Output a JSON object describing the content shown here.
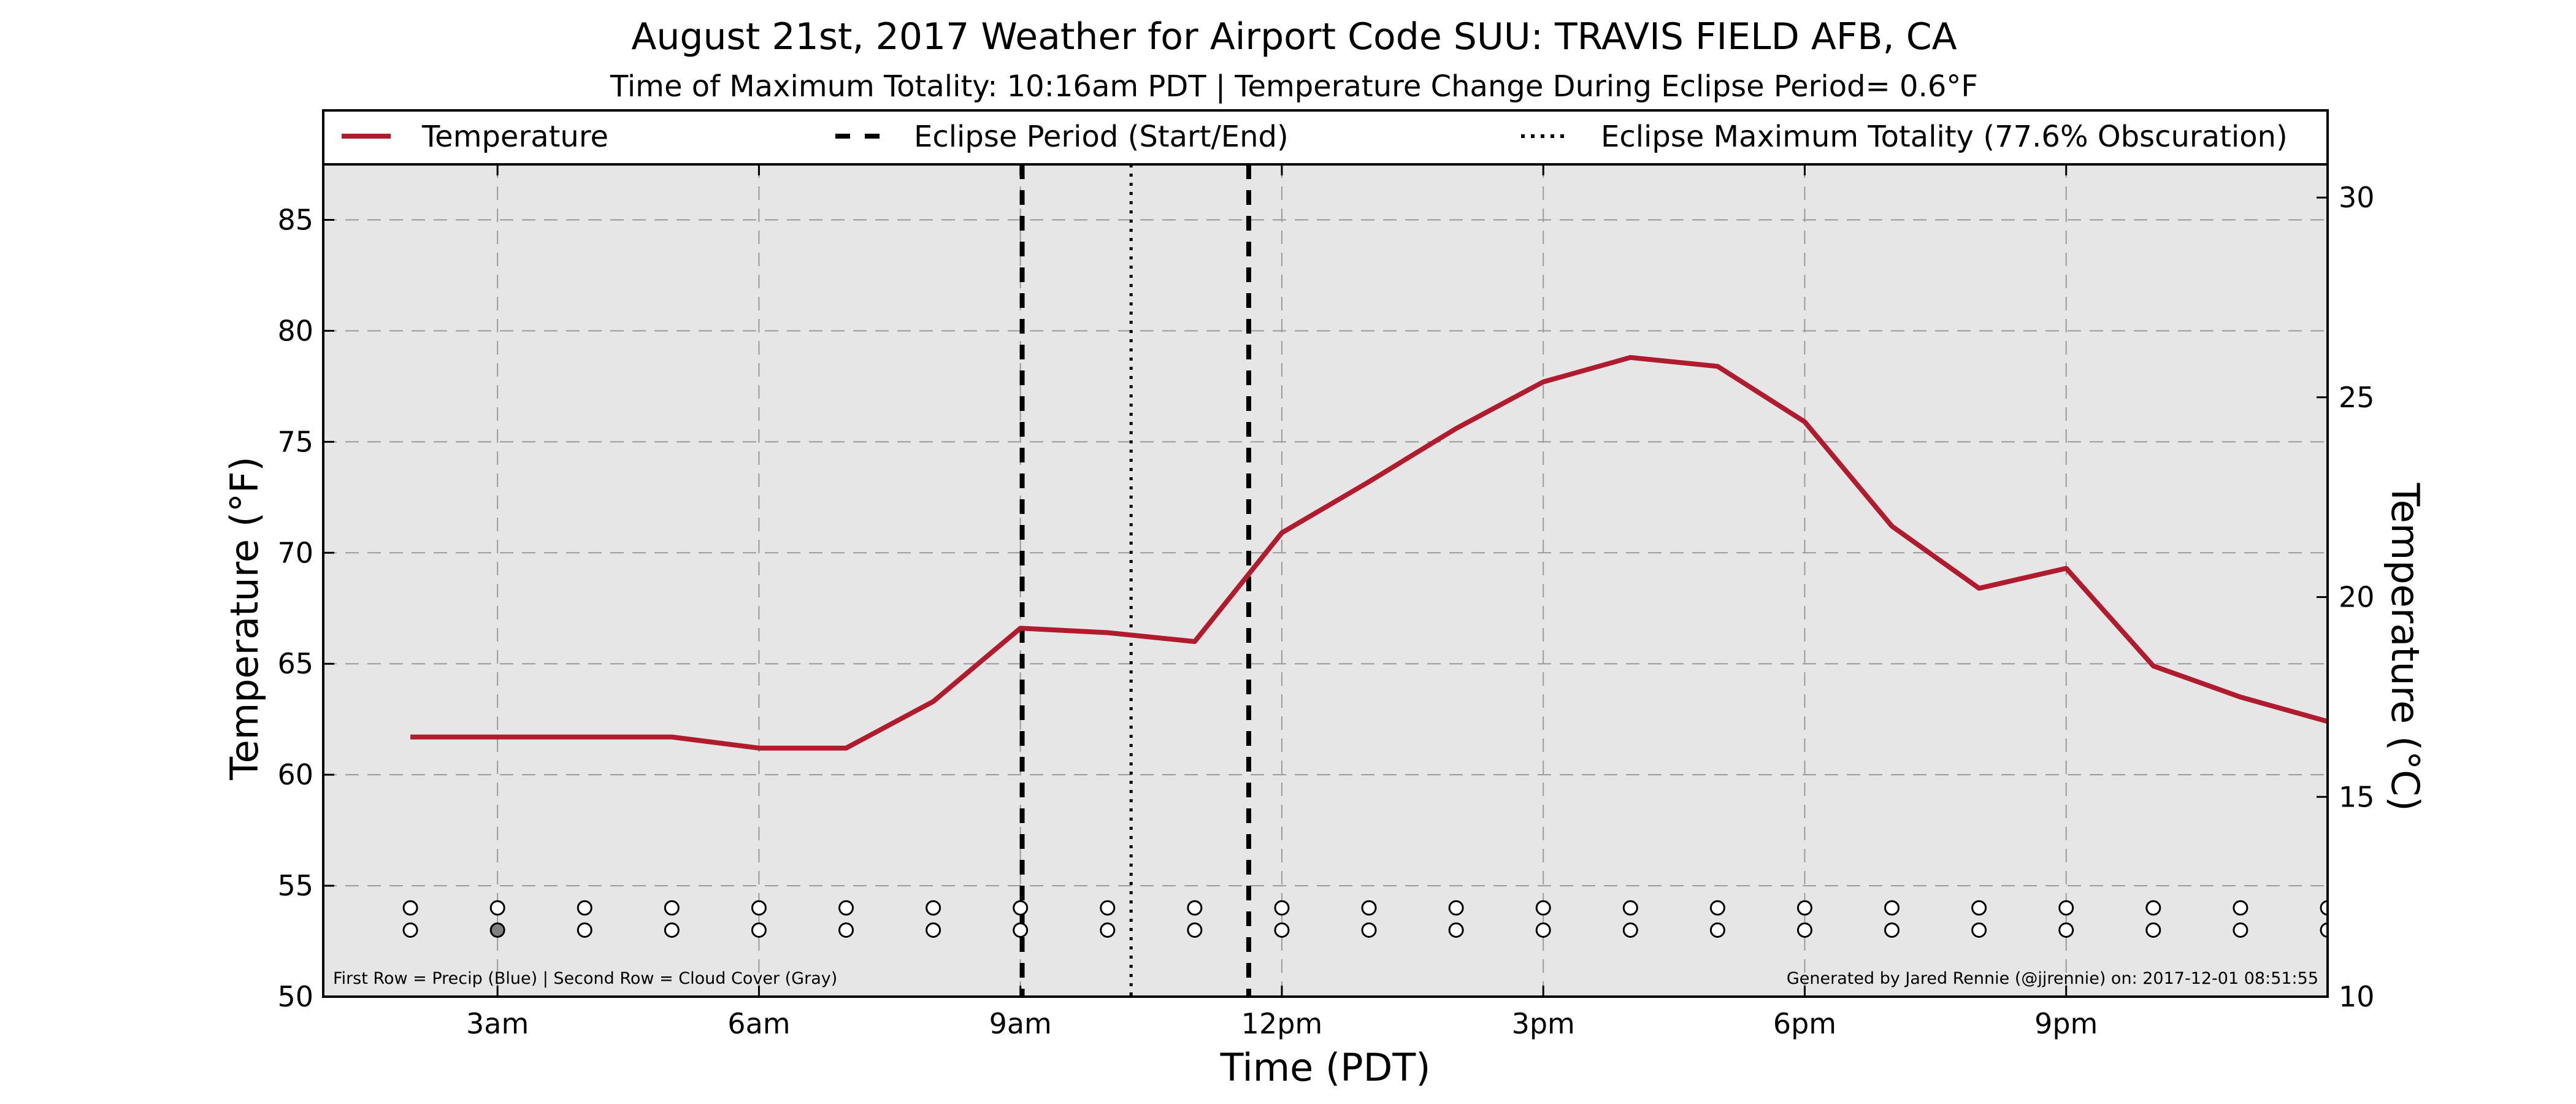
{
  "chart_data": {
    "type": "line",
    "title": "August 21st, 2017 Weather for Airport Code SUU: TRAVIS FIELD AFB, CA",
    "subtitle": "Time of Maximum Totality: 10:16am PDT | Temperature Change During Eclipse Period= 0.6°F",
    "xlabel": "Time (PDT)",
    "ylabel": "Temperature (°F)",
    "ylabel_right": "Temperature (°C)",
    "xlim": [
      1.0,
      24.0
    ],
    "ylim": [
      50,
      87.5
    ],
    "ylim_right": [
      10,
      30.83
    ],
    "x_ticks": [
      {
        "x": 3,
        "label": "3am"
      },
      {
        "x": 6,
        "label": "6am"
      },
      {
        "x": 9,
        "label": "9am"
      },
      {
        "x": 12,
        "label": "12pm"
      },
      {
        "x": 15,
        "label": "3pm"
      },
      {
        "x": 18,
        "label": "6pm"
      },
      {
        "x": 21,
        "label": "9pm"
      }
    ],
    "y_ticks": [
      50,
      55,
      60,
      65,
      70,
      75,
      80,
      85
    ],
    "y_ticks_right": [
      10,
      15,
      20,
      25,
      30
    ],
    "grid": true,
    "legend_position": "top",
    "series": [
      {
        "name": "Temperature",
        "color": "#b01c2e",
        "x": [
          2,
          3,
          4,
          5,
          6,
          7,
          8,
          9,
          10,
          11,
          12,
          13,
          14,
          15,
          16,
          17,
          18,
          19,
          20,
          21,
          22,
          23,
          24
        ],
        "y": [
          61.7,
          61.7,
          61.7,
          61.7,
          61.2,
          61.2,
          63.3,
          66.6,
          66.4,
          66.0,
          70.9,
          73.2,
          75.6,
          77.7,
          78.8,
          78.4,
          75.9,
          71.2,
          68.4,
          69.3,
          64.9,
          63.5,
          62.4
        ]
      }
    ],
    "eclipse_period": {
      "label": "Eclipse Period (Start/End)",
      "start": 9.02,
      "end": 11.62
    },
    "eclipse_max": {
      "label": "Eclipse Maximum Totality (77.6% Obscuration)",
      "x": 10.27
    },
    "observation_rows": {
      "x": [
        2,
        3,
        4,
        5,
        6,
        7,
        8,
        9,
        10,
        11,
        12,
        13,
        14,
        15,
        16,
        17,
        18,
        19,
        20,
        21,
        22,
        23,
        24
      ],
      "precip_y": 54,
      "cloud_y": 53,
      "precip_color": "#ffffff",
      "cloud_color": "#ffffff",
      "cloud_filled_x": [
        3
      ],
      "cloud_filled_color": "#808080"
    },
    "footnote_left": "First Row = Precip (Blue) | Second Row = Cloud Cover (Gray)",
    "footnote_right": "Generated by Jared Rennie (@jjrennie) on: 2017-12-01 08:51:55"
  }
}
